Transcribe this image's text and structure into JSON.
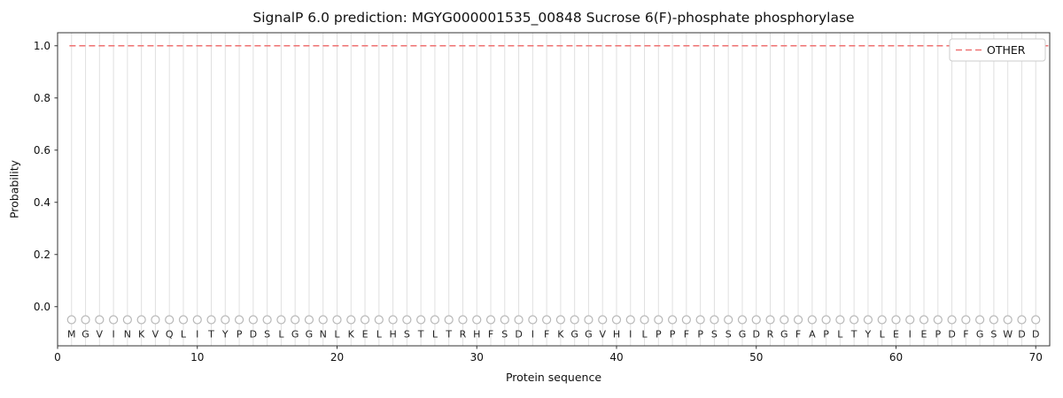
{
  "chart_data": {
    "type": "line",
    "title": "SignalP 6.0 prediction: MGYG000001535_00848 Sucrose 6(F)-phosphate phosphorylase",
    "xlabel": "Protein sequence",
    "ylabel": "Probability",
    "xlim": [
      0,
      71
    ],
    "ylim": [
      -0.15,
      1.05
    ],
    "xticks": [
      0,
      10,
      20,
      30,
      40,
      50,
      60,
      70
    ],
    "yticks": [
      0.0,
      0.2,
      0.4,
      0.6,
      0.8,
      1.0
    ],
    "grid": "vertical-line-per-residue",
    "sequence": "MGVINKVQLITYPDSLGGNLKELHSTLTRHFSDIFKGGVHILPPFPSSGDRGFAPLTYLEIEPDFGSWDD",
    "series": [
      {
        "name": "OTHER",
        "kind": "hline",
        "y": 1.0,
        "style": "dashed",
        "color": "#ef7272"
      }
    ],
    "residue_markers": {
      "shape": "open-circle",
      "y": -0.05,
      "color": "#b8b8b8"
    },
    "legend": {
      "position": "upper-right",
      "entries": [
        {
          "label": "OTHER",
          "color": "#ef7272",
          "style": "dashed"
        }
      ]
    },
    "colors": {
      "grid": "#e0e0e0",
      "axis": "#333333",
      "text": "#111111",
      "marker_stroke": "#b8b8b8"
    }
  }
}
